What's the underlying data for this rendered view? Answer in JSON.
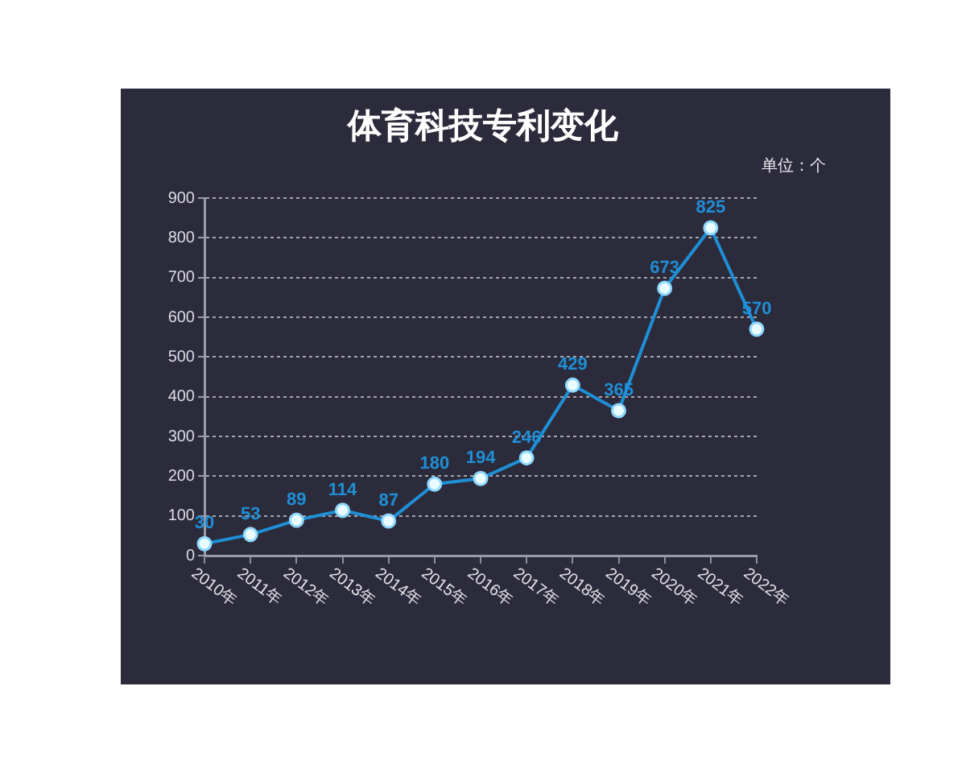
{
  "chart_data": {
    "type": "line",
    "title": "体育科技专利变化",
    "annotations": [
      "单位：个"
    ],
    "categories": [
      "2010年",
      "2011年",
      "2012年",
      "2013年",
      "2014年",
      "2015年",
      "2016年",
      "2017年",
      "2018年",
      "2019年",
      "2020年",
      "2021年",
      "2022年"
    ],
    "values": [
      30,
      53,
      89,
      114,
      87,
      180,
      194,
      246,
      429,
      365,
      673,
      825,
      570
    ],
    "color": "#1f8fd6",
    "ylim": [
      0,
      900
    ],
    "yticks": [
      0,
      100,
      200,
      300,
      400,
      500,
      600,
      700,
      800,
      900
    ],
    "grid": "y",
    "legend": false,
    "marker": "circle",
    "data_labels": true
  }
}
